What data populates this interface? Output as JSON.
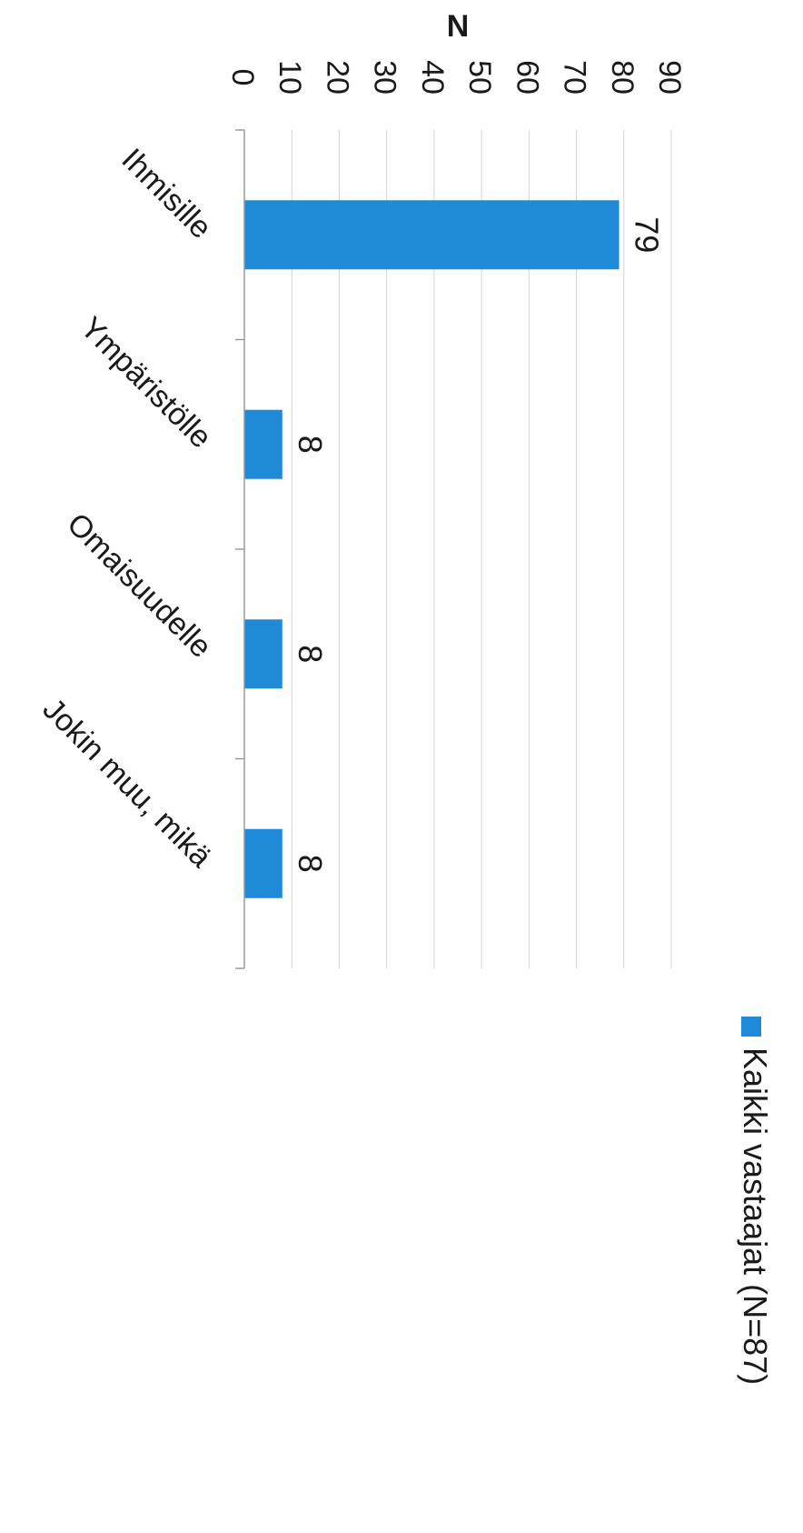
{
  "chart_data": {
    "type": "bar",
    "orientation": "horizontal",
    "rotated_page": true,
    "title": "",
    "xlabel": "",
    "ylabel": "N",
    "categories": [
      "Ihmisille",
      "Ympäristölle",
      "Omaisuudelle",
      "Jokin muu, mikä"
    ],
    "series": [
      {
        "name": "Kaikki vastaajat (N=87)",
        "values": [
          79,
          8,
          8,
          8
        ],
        "color": "#1f8ad8"
      }
    ],
    "value_labels": [
      "79",
      "8",
      "8",
      "8"
    ],
    "ylim": [
      0,
      90
    ],
    "ticks": [
      0,
      10,
      20,
      30,
      40,
      50,
      60,
      70,
      80,
      90
    ],
    "tick_labels": [
      "0",
      "10",
      "20",
      "30",
      "40",
      "50",
      "60",
      "70",
      "80",
      "90"
    ],
    "grid": true,
    "legend_position": "right"
  }
}
